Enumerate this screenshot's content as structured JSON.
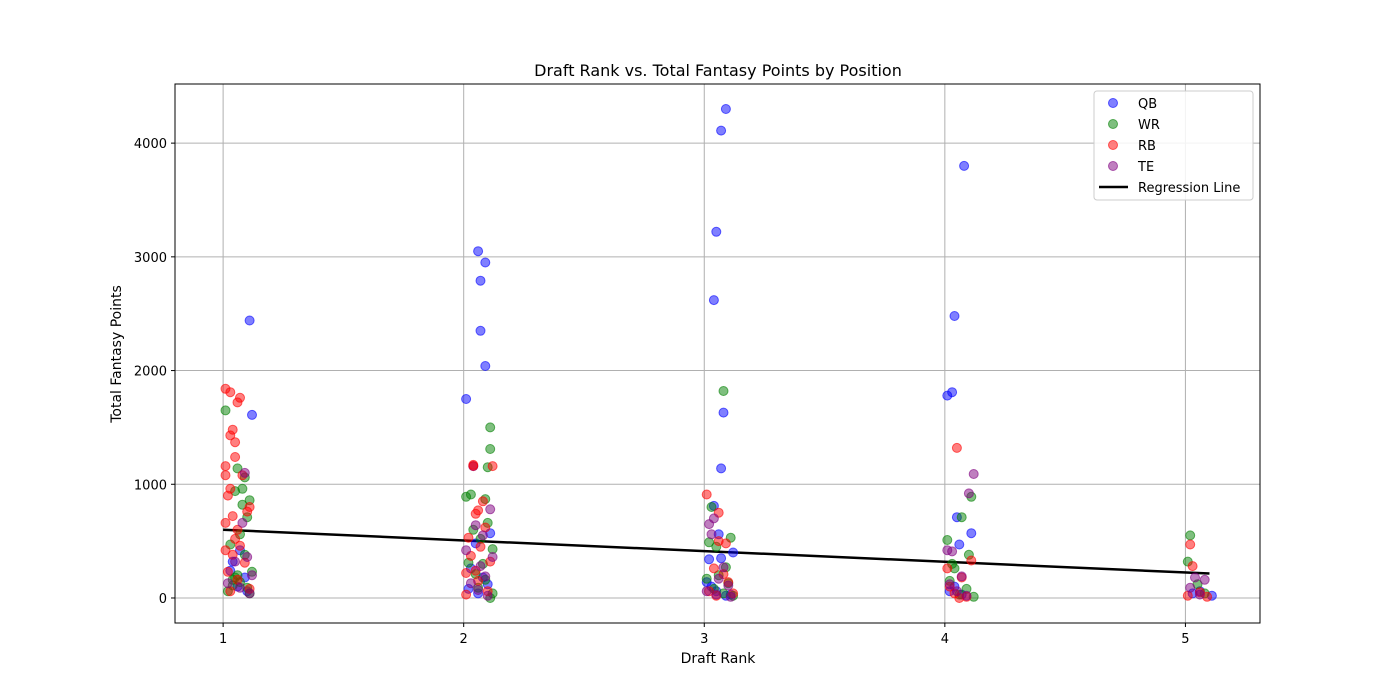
{
  "chart_data": {
    "type": "scatter",
    "title": "Draft Rank vs. Total Fantasy Points by Position",
    "xlabel": "Draft Rank",
    "ylabel": "Total Fantasy Points",
    "xlim": [
      0.8,
      5.31
    ],
    "ylim": [
      -220,
      4520
    ],
    "xticks": [
      1,
      2,
      3,
      4,
      5
    ],
    "yticks": [
      0,
      1000,
      2000,
      3000,
      4000
    ],
    "grid": true,
    "legend_position": "top-right",
    "series": [
      {
        "name": "QB",
        "color": "#0000ff",
        "points": [
          [
            1.11,
            2440
          ],
          [
            1.12,
            1610
          ],
          [
            1.04,
            320
          ],
          [
            1.09,
            180
          ],
          [
            1.06,
            100
          ],
          [
            1.1,
            60
          ],
          [
            1.03,
            240
          ],
          [
            1.07,
            420
          ],
          [
            2.06,
            3050
          ],
          [
            2.09,
            2950
          ],
          [
            2.07,
            2790
          ],
          [
            2.07,
            2350
          ],
          [
            2.09,
            2040
          ],
          [
            2.01,
            1750
          ],
          [
            2.04,
            1160
          ],
          [
            2.11,
            570
          ],
          [
            2.05,
            480
          ],
          [
            2.03,
            260
          ],
          [
            2.08,
            180
          ],
          [
            2.1,
            120
          ],
          [
            2.02,
            80
          ],
          [
            2.06,
            40
          ],
          [
            3.09,
            4300
          ],
          [
            3.07,
            4110
          ],
          [
            3.05,
            3220
          ],
          [
            3.04,
            2620
          ],
          [
            3.08,
            1630
          ],
          [
            3.07,
            1140
          ],
          [
            3.04,
            810
          ],
          [
            3.06,
            560
          ],
          [
            3.12,
            400
          ],
          [
            3.07,
            350
          ],
          [
            3.02,
            340
          ],
          [
            3.03,
            100
          ],
          [
            3.05,
            60
          ],
          [
            3.09,
            20
          ],
          [
            3.01,
            140
          ],
          [
            3.11,
            30
          ],
          [
            4.08,
            3800
          ],
          [
            4.04,
            2480
          ],
          [
            4.03,
            1810
          ],
          [
            4.01,
            1780
          ],
          [
            4.05,
            710
          ],
          [
            4.11,
            570
          ],
          [
            4.06,
            470
          ],
          [
            4.02,
            60
          ],
          [
            4.07,
            30
          ],
          [
            4.04,
            100
          ],
          [
            5.11,
            20
          ],
          [
            5.03,
            40
          ],
          [
            5.06,
            60
          ]
        ]
      },
      {
        "name": "WR",
        "color": "#008000",
        "points": [
          [
            1.01,
            1650
          ],
          [
            1.06,
            1140
          ],
          [
            1.09,
            1060
          ],
          [
            1.11,
            860
          ],
          [
            1.05,
            940
          ],
          [
            1.08,
            820
          ],
          [
            1.1,
            710
          ],
          [
            1.07,
            560
          ],
          [
            1.03,
            470
          ],
          [
            1.09,
            380
          ],
          [
            1.12,
            230
          ],
          [
            1.05,
            180
          ],
          [
            1.07,
            140
          ],
          [
            1.04,
            110
          ],
          [
            1.1,
            90
          ],
          [
            1.11,
            40
          ],
          [
            1.06,
            200
          ],
          [
            1.02,
            60
          ],
          [
            1.08,
            960
          ],
          [
            1.04,
            160
          ],
          [
            2.11,
            1500
          ],
          [
            2.11,
            1310
          ],
          [
            2.1,
            1150
          ],
          [
            2.03,
            910
          ],
          [
            2.09,
            870
          ],
          [
            2.01,
            890
          ],
          [
            2.1,
            660
          ],
          [
            2.04,
            600
          ],
          [
            2.07,
            520
          ],
          [
            2.12,
            430
          ],
          [
            2.08,
            300
          ],
          [
            2.05,
            210
          ],
          [
            2.09,
            160
          ],
          [
            2.06,
            90
          ],
          [
            2.12,
            40
          ],
          [
            2.11,
            0
          ],
          [
            2.02,
            310
          ],
          [
            3.08,
            1820
          ],
          [
            3.03,
            800
          ],
          [
            3.02,
            490
          ],
          [
            3.11,
            530
          ],
          [
            3.05,
            450
          ],
          [
            3.09,
            270
          ],
          [
            3.06,
            200
          ],
          [
            3.1,
            130
          ],
          [
            3.04,
            80
          ],
          [
            3.08,
            40
          ],
          [
            3.12,
            20
          ],
          [
            3.01,
            170
          ],
          [
            4.01,
            510
          ],
          [
            4.07,
            710
          ],
          [
            4.1,
            380
          ],
          [
            4.11,
            890
          ],
          [
            4.04,
            260
          ],
          [
            4.02,
            150
          ],
          [
            4.09,
            80
          ],
          [
            4.06,
            30
          ],
          [
            4.12,
            10
          ],
          [
            4.03,
            300
          ],
          [
            5.02,
            550
          ],
          [
            5.01,
            320
          ],
          [
            5.05,
            120
          ],
          [
            5.08,
            40
          ]
        ]
      },
      {
        "name": "RB",
        "color": "#ff0000",
        "points": [
          [
            1.01,
            1840
          ],
          [
            1.03,
            1810
          ],
          [
            1.07,
            1760
          ],
          [
            1.06,
            1720
          ],
          [
            1.04,
            1480
          ],
          [
            1.03,
            1430
          ],
          [
            1.05,
            1370
          ],
          [
            1.05,
            1240
          ],
          [
            1.01,
            1160
          ],
          [
            1.01,
            1080
          ],
          [
            1.08,
            1080
          ],
          [
            1.02,
            900
          ],
          [
            1.03,
            960
          ],
          [
            1.11,
            800
          ],
          [
            1.1,
            760
          ],
          [
            1.04,
            720
          ],
          [
            1.01,
            660
          ],
          [
            1.06,
            600
          ],
          [
            1.05,
            520
          ],
          [
            1.07,
            460
          ],
          [
            1.01,
            420
          ],
          [
            1.04,
            380
          ],
          [
            1.09,
            310
          ],
          [
            1.02,
            230
          ],
          [
            1.06,
            160
          ],
          [
            1.11,
            80
          ],
          [
            1.03,
            60
          ],
          [
            2.04,
            1170
          ],
          [
            2.12,
            1160
          ],
          [
            2.04,
            1160
          ],
          [
            2.08,
            850
          ],
          [
            2.06,
            770
          ],
          [
            2.05,
            740
          ],
          [
            2.09,
            620
          ],
          [
            2.02,
            530
          ],
          [
            2.07,
            450
          ],
          [
            2.03,
            370
          ],
          [
            2.11,
            320
          ],
          [
            2.05,
            240
          ],
          [
            2.01,
            220
          ],
          [
            2.06,
            150
          ],
          [
            2.1,
            60
          ],
          [
            2.01,
            30
          ],
          [
            3.01,
            910
          ],
          [
            3.06,
            750
          ],
          [
            3.06,
            500
          ],
          [
            3.09,
            480
          ],
          [
            3.04,
            260
          ],
          [
            3.08,
            210
          ],
          [
            3.1,
            140
          ],
          [
            3.02,
            60
          ],
          [
            3.12,
            40
          ],
          [
            3.05,
            20
          ],
          [
            4.05,
            1320
          ],
          [
            4.11,
            330
          ],
          [
            4.07,
            180
          ],
          [
            4.02,
            100
          ],
          [
            4.04,
            40
          ],
          [
            4.09,
            10
          ],
          [
            4.06,
            0
          ],
          [
            4.01,
            260
          ],
          [
            5.02,
            470
          ],
          [
            5.03,
            280
          ],
          [
            5.06,
            50
          ],
          [
            5.01,
            20
          ],
          [
            5.09,
            10
          ]
        ]
      },
      {
        "name": "TE",
        "color": "#800080",
        "points": [
          [
            1.09,
            1100
          ],
          [
            1.08,
            660
          ],
          [
            1.1,
            360
          ],
          [
            1.05,
            320
          ],
          [
            1.12,
            200
          ],
          [
            1.02,
            130
          ],
          [
            1.07,
            90
          ],
          [
            1.11,
            40
          ],
          [
            2.11,
            780
          ],
          [
            2.05,
            640
          ],
          [
            2.08,
            550
          ],
          [
            2.01,
            420
          ],
          [
            2.12,
            360
          ],
          [
            2.07,
            280
          ],
          [
            2.09,
            190
          ],
          [
            2.03,
            130
          ],
          [
            2.06,
            70
          ],
          [
            2.1,
            20
          ],
          [
            3.02,
            650
          ],
          [
            3.04,
            700
          ],
          [
            3.03,
            560
          ],
          [
            3.08,
            270
          ],
          [
            3.06,
            170
          ],
          [
            3.1,
            110
          ],
          [
            3.01,
            60
          ],
          [
            3.05,
            30
          ],
          [
            3.11,
            10
          ],
          [
            4.12,
            1090
          ],
          [
            4.1,
            920
          ],
          [
            4.01,
            420
          ],
          [
            4.03,
            410
          ],
          [
            4.07,
            190
          ],
          [
            4.02,
            120
          ],
          [
            4.05,
            60
          ],
          [
            4.09,
            20
          ],
          [
            5.04,
            180
          ],
          [
            5.08,
            160
          ],
          [
            5.02,
            90
          ],
          [
            5.06,
            30
          ]
        ]
      }
    ],
    "regression": {
      "name": "Regression Line",
      "color": "#000000",
      "x": [
        1.0,
        5.1
      ],
      "y": [
        600,
        215
      ]
    }
  }
}
